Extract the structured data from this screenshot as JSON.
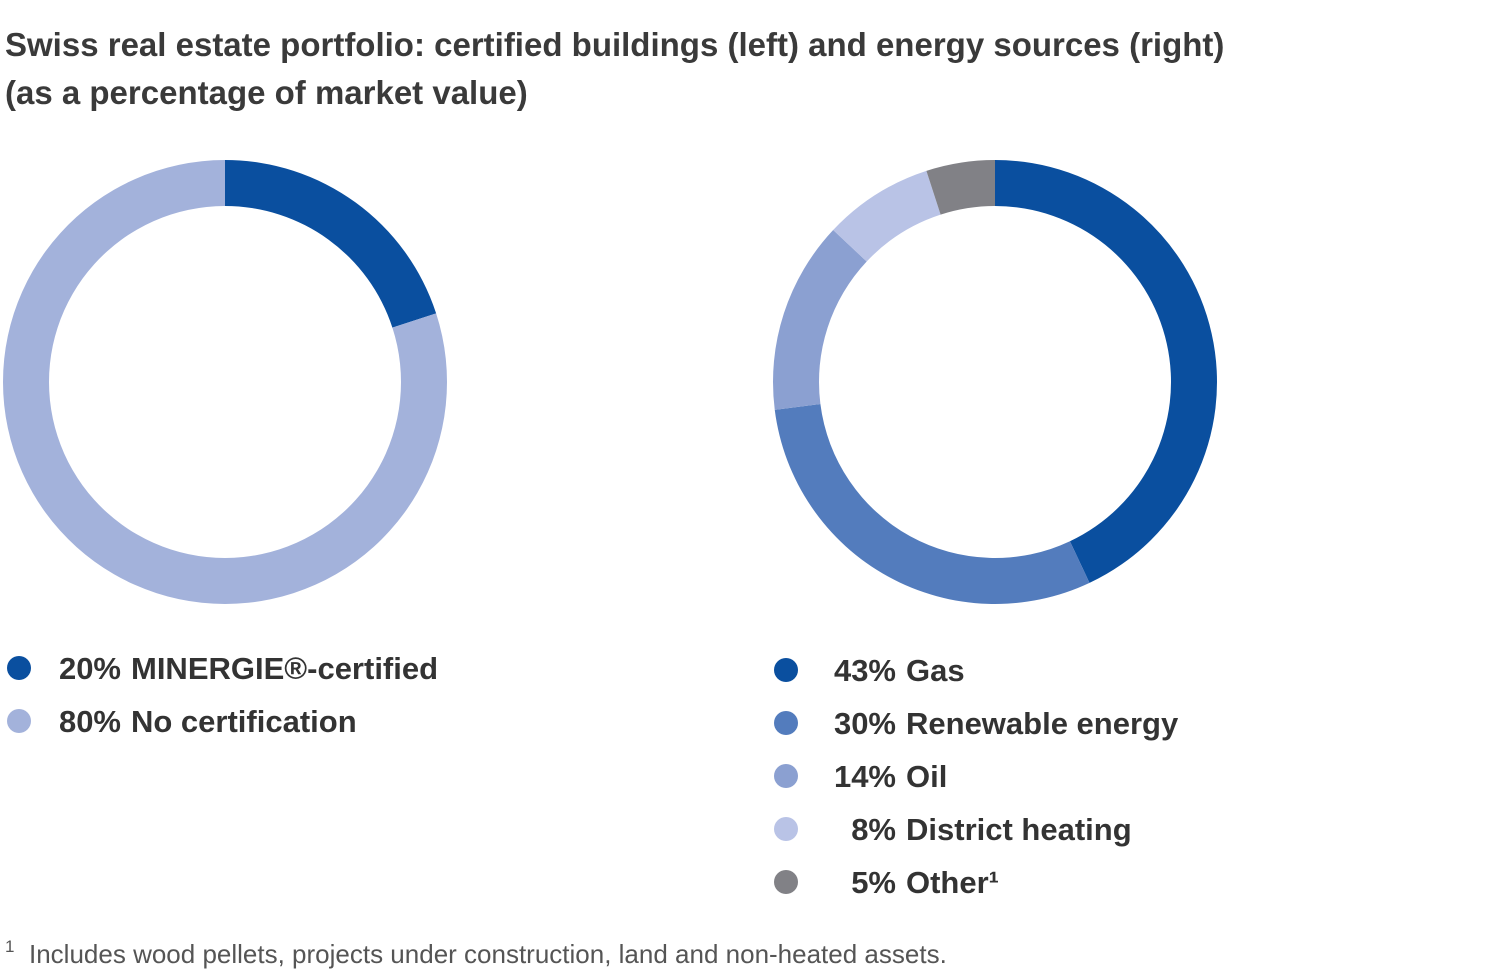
{
  "title": "Swiss real estate portfolio: certified buildings (left) and energy sources (right)",
  "subtitle": "(as a percentage of market value)",
  "chart_data": [
    {
      "type": "donut",
      "categories": [
        "MINERGIE®-certified",
        "No certification"
      ],
      "values": [
        20,
        80
      ],
      "value_labels": [
        "20%",
        "80%"
      ],
      "colors": [
        "#0a4f9f",
        "#a3b2db"
      ]
    },
    {
      "type": "donut",
      "categories": [
        "Gas",
        "Renewable energy",
        "Oil",
        "District heating",
        "Other¹"
      ],
      "values": [
        43,
        30,
        14,
        8,
        5
      ],
      "value_labels": [
        "43%",
        "30%",
        "14%",
        "8%",
        "5%"
      ],
      "colors": [
        "#0a4f9f",
        "#537cbd",
        "#8ba0d1",
        "#b9c3e6",
        "#818186"
      ]
    }
  ],
  "footnote": {
    "marker": "1",
    "text": "Includes wood pellets, projects under construction, land and non-heated assets."
  }
}
